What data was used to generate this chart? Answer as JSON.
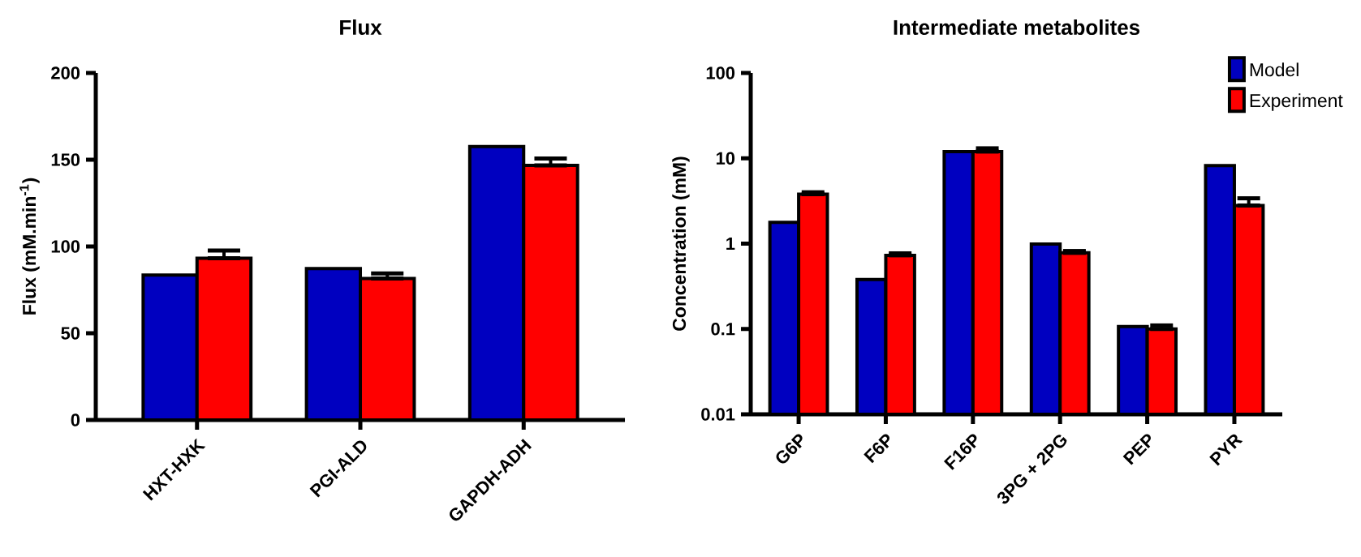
{
  "chart_data": [
    {
      "type": "bar",
      "title": "Flux",
      "ylabel": "Flux (mM.min$^{-1}$)",
      "categories": [
        "HXT-HXK",
        "PGI-ALD",
        "GAPDH-ADH"
      ],
      "series": [
        {
          "color": "#0000c0",
          "values": [
            83.5,
            87.3,
            157.6
          ]
        },
        {
          "color": "#ff0000",
          "values": [
            93.2,
            81.5,
            146.7
          ],
          "errors": [
            [
              93.2,
              97.7
            ],
            [
              81.5,
              84.5
            ],
            [
              146.7,
              150.7
            ]
          ]
        }
      ],
      "ylim": [
        0,
        200
      ],
      "yticks": [
        0,
        50,
        100,
        150,
        200
      ],
      "grid": false,
      "legend": false
    },
    {
      "type": "bar",
      "title": "Intermediate metabolites",
      "ylabel": "Concentration (mM)",
      "categories": [
        "G6P",
        "F6P",
        "F16P",
        "3PG + 2PG",
        "PEP",
        "PYR"
      ],
      "series": [
        {
          "name": "Model",
          "color": "#0000c0",
          "values": [
            1.78,
            0.38,
            12,
            0.99,
            0.107,
            8.2
          ]
        },
        {
          "name": "Experiment",
          "color": "#ff0000",
          "values": [
            3.8,
            0.73,
            12,
            0.78,
            0.1,
            2.8
          ],
          "errors": [
            [
              3.8,
              4.0
            ],
            [
              0.73,
              0.77
            ],
            [
              12,
              13.1
            ],
            [
              0.78,
              0.82
            ],
            [
              0.1,
              0.11
            ],
            [
              2.8,
              3.4
            ]
          ]
        }
      ],
      "log": "y",
      "ylim": [
        0.01,
        100
      ],
      "yticks": [
        0.01,
        0.1,
        1,
        10,
        100
      ],
      "grid": false,
      "legend": "top right"
    }
  ]
}
